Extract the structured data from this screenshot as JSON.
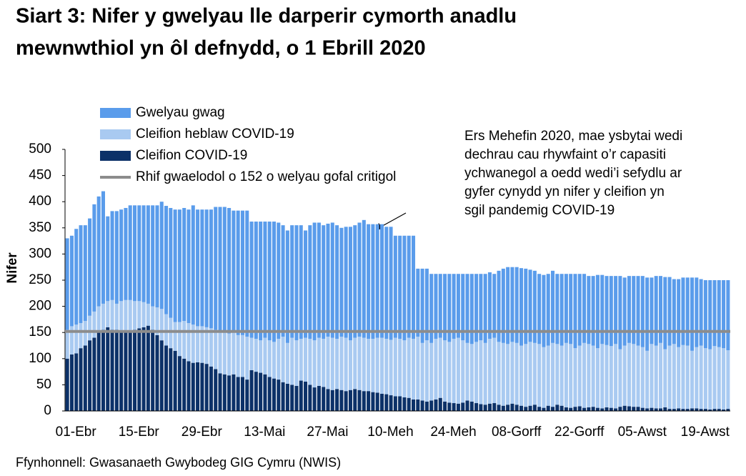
{
  "chart_data": {
    "type": "stacked_bar",
    "title": [
      "Siart 3: Nifer y gwelyau lle darperir cymorth anadlu",
      "mewnwthiol yn ôl defnydd, o 1 Ebrill 2020"
    ],
    "y_label": "Nifer",
    "source": "Ffynhonnell: Gwasanaeth Gwybodeg GIG Cymru (NWIS)",
    "annotation": [
      "Ers Mehefin 2020, mae ysbytai wedi",
      "dechrau cau rhywfaint o’r capasiti",
      "ychwanegol a oedd wedi’i sefydlu ar",
      "gyfer cynydd yn nifer y cleifion yn",
      "sgil pandemig COVID-19"
    ],
    "ylim": [
      0,
      500
    ],
    "yticks": [
      0,
      50,
      100,
      150,
      200,
      250,
      300,
      350,
      400,
      450,
      500
    ],
    "categories": [
      "01-Ebr",
      null,
      null,
      null,
      null,
      null,
      null,
      null,
      null,
      null,
      null,
      null,
      null,
      null,
      "15-Ebr",
      null,
      null,
      null,
      null,
      null,
      null,
      null,
      null,
      null,
      null,
      null,
      null,
      null,
      "29-Ebr",
      null,
      null,
      null,
      null,
      null,
      null,
      null,
      null,
      null,
      null,
      null,
      null,
      null,
      "13-Mai",
      null,
      null,
      null,
      null,
      null,
      null,
      null,
      null,
      null,
      null,
      null,
      null,
      null,
      "27-Mai",
      null,
      null,
      null,
      null,
      null,
      null,
      null,
      null,
      null,
      null,
      null,
      null,
      null,
      "10-Meh",
      null,
      null,
      null,
      null,
      null,
      null,
      null,
      null,
      null,
      null,
      null,
      null,
      null,
      "24-Meh",
      null,
      null,
      null,
      null,
      null,
      null,
      null,
      null,
      null,
      null,
      null,
      null,
      null,
      "08-Gorff",
      null,
      null,
      null,
      null,
      null,
      null,
      null,
      null,
      null,
      null,
      null,
      null,
      null,
      "22-Gorff",
      null,
      null,
      null,
      null,
      null,
      null,
      null,
      null,
      null,
      null,
      null,
      null,
      null,
      "05-Awst",
      null,
      null,
      null,
      null,
      null,
      null,
      null,
      null,
      null,
      null,
      null,
      null,
      null,
      "19-Awst",
      null,
      null,
      null,
      null,
      null,
      null,
      null
    ],
    "series": [
      {
        "name": "Cleifion COVID-19",
        "color": "#0c3168",
        "values": [
          100,
          108,
          110,
          120,
          125,
          135,
          140,
          150,
          155,
          160,
          155,
          155,
          152,
          150,
          152,
          155,
          158,
          160,
          163,
          155,
          145,
          135,
          125,
          120,
          115,
          105,
          100,
          95,
          92,
          93,
          92,
          90,
          85,
          80,
          72,
          70,
          68,
          70,
          65,
          65,
          60,
          78,
          75,
          73,
          70,
          65,
          62,
          60,
          55,
          52,
          50,
          48,
          58,
          56,
          50,
          45,
          48,
          46,
          42,
          40,
          42,
          40,
          38,
          40,
          42,
          40,
          38,
          38,
          36,
          35,
          33,
          32,
          30,
          28,
          28,
          26,
          25,
          22,
          22,
          20,
          18,
          20,
          22,
          25,
          18,
          16,
          15,
          14,
          16,
          20,
          18,
          15,
          13,
          12,
          14,
          15,
          12,
          10,
          12,
          14,
          12,
          10,
          8,
          10,
          12,
          8,
          6,
          10,
          8,
          12,
          10,
          7,
          6,
          8,
          9,
          6,
          7,
          8,
          6,
          5,
          7,
          6,
          5,
          8,
          10,
          9,
          8,
          8,
          6,
          5,
          6,
          5,
          5,
          7,
          4,
          4,
          5,
          4,
          4,
          5,
          5,
          4,
          4,
          3,
          4,
          4,
          3,
          4
        ]
      },
      {
        "name": "Cleifion heblaw COVID-19",
        "color": "#a9caf1",
        "values": [
          55,
          54,
          55,
          48,
          47,
          47,
          50,
          50,
          50,
          50,
          57,
          50,
          58,
          62,
          60,
          55,
          52,
          48,
          42,
          45,
          53,
          60,
          60,
          58,
          55,
          65,
          72,
          73,
          73,
          69,
          70,
          70,
          73,
          75,
          80,
          80,
          80,
          80,
          80,
          80,
          82,
          62,
          63,
          62,
          70,
          70,
          70,
          78,
          87,
          78,
          90,
          87,
          80,
          84,
          88,
          90,
          92,
          92,
          100,
          100,
          96,
          102,
          102,
          95,
          98,
          102,
          102,
          100,
          102,
          105,
          107,
          106,
          106,
          112,
          110,
          109,
          115,
          116,
          120,
          110,
          117,
          110,
          116,
          115,
          117,
          116,
          123,
          126,
          119,
          110,
          110,
          117,
          122,
          118,
          124,
          125,
          120,
          120,
          116,
          118,
          118,
          115,
          120,
          122,
          118,
          120,
          116,
          115,
          122,
          116,
          115,
          123,
          122,
          112,
          116,
          124,
          121,
          117,
          114,
          123,
          119,
          118,
          123,
          110,
          115,
          121,
          120,
          117,
          116,
          110,
          122,
          120,
          125,
          111,
          121,
          124,
          117,
          122,
          121,
          110,
          117,
          121,
          116,
          115,
          120,
          118,
          117,
          112
        ]
      },
      {
        "name": "Gwelyau gwag",
        "color": "#5a9ceb",
        "values": [
          175,
          173,
          183,
          187,
          183,
          186,
          205,
          210,
          215,
          162,
          170,
          177,
          175,
          176,
          181,
          183,
          183,
          185,
          188,
          193,
          195,
          205,
          207,
          210,
          215,
          215,
          216,
          217,
          228,
          223,
          223,
          225,
          227,
          235,
          238,
          240,
          240,
          233,
          238,
          238,
          241,
          222,
          224,
          227,
          222,
          227,
          230,
          222,
          213,
          215,
          215,
          220,
          217,
          205,
          217,
          225,
          220,
          217,
          216,
          220,
          217,
          208,
          212,
          217,
          215,
          218,
          225,
          219,
          219,
          217,
          217,
          214,
          216,
          195,
          197,
          200,
          195,
          197,
          130,
          142,
          137,
          132,
          124,
          122,
          127,
          130,
          124,
          122,
          127,
          132,
          134,
          130,
          127,
          132,
          127,
          122,
          136,
          142,
          147,
          143,
          145,
          148,
          144,
          138,
          138,
          134,
          138,
          137,
          138,
          134,
          137,
          132,
          134,
          142,
          137,
          132,
          130,
          133,
          140,
          132,
          132,
          134,
          130,
          140,
          130,
          128,
          130,
          133,
          136,
          140,
          127,
          133,
          128,
          138,
          131,
          124,
          130,
          129,
          130,
          140,
          133,
          127,
          130,
          132,
          126,
          128,
          130,
          134
        ]
      }
    ],
    "reference_line": {
      "value": 152,
      "label": "Rhif gwaelodol o 152 o welyau gofal critigol",
      "color": "#8c8c8c"
    }
  }
}
